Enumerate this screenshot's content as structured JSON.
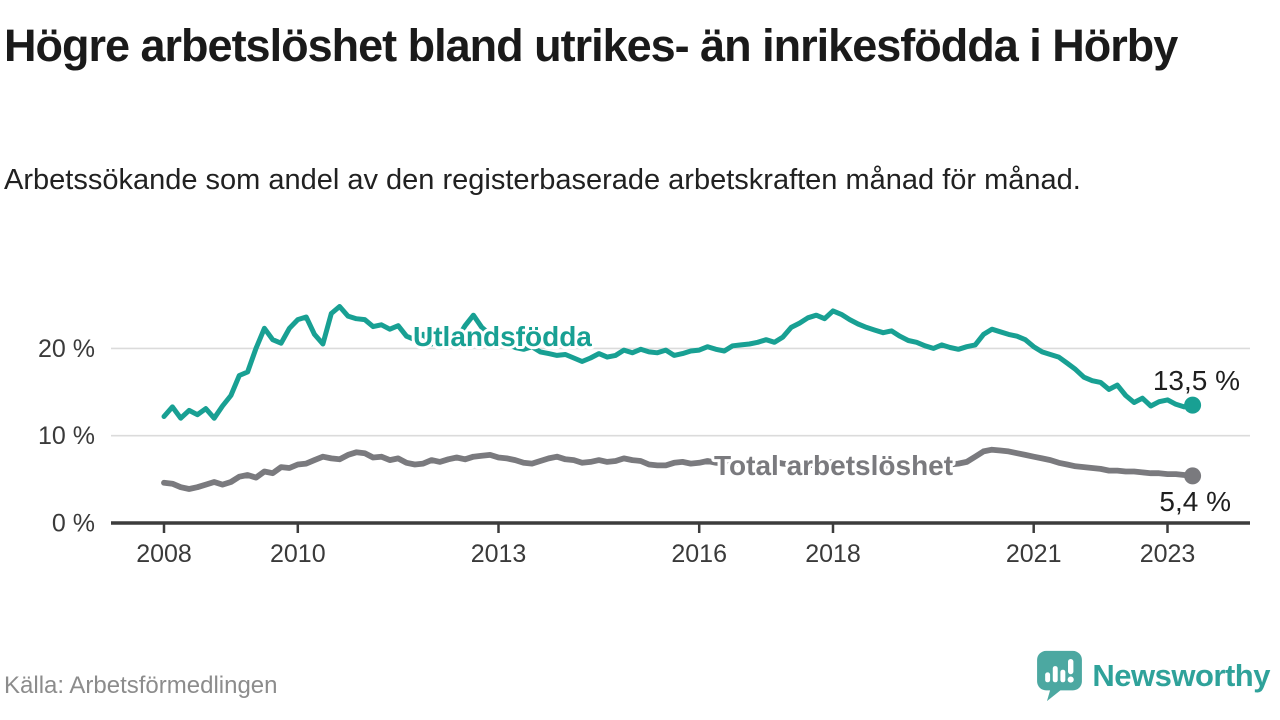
{
  "header": {
    "title": "Högre arbetslöshet bland utrikes- än inrikesfödda i Hörby",
    "subtitle": "Arbetssökande som andel av den registerbaserade arbetskraften månad för månad."
  },
  "footer": {
    "source": "Källa: Arbetsförmedlingen",
    "brand": "Newsworthy"
  },
  "colors": {
    "background": "#ffffff",
    "title_text": "#1a1a1a",
    "axis": "#3c3c3c",
    "grid": "#dbdbdb",
    "tick_text": "#3a3a3a",
    "source_text": "#8c8c8c",
    "brand_teal": "#2fa29a",
    "brand_icon_teal": "#4ca8a1",
    "series_utlandsfodda": "#18a093",
    "series_total": "#7a7a7e"
  },
  "chart_data": {
    "type": "line",
    "title": "Högre arbetslöshet bland utrikes- än inrikesfödda i Hörby",
    "subtitle": "Arbetssökande som andel av den registerbaserade arbetskraften månad för månad.",
    "source": "Källa: Arbetsförmedlingen",
    "unit": "%",
    "grid": "horizontal-only",
    "legend_position": "inline-labels-on-lines",
    "x_start_year": 2008.0,
    "x_step_years": 0.125,
    "xlim": [
      2007.2,
      2024.1
    ],
    "ylim": [
      0,
      28
    ],
    "x_ticks": [
      {
        "value": 2008,
        "label": "2008"
      },
      {
        "value": 2010,
        "label": "2010"
      },
      {
        "value": 2013,
        "label": "2013"
      },
      {
        "value": 2016,
        "label": "2016"
      },
      {
        "value": 2018,
        "label": "2018"
      },
      {
        "value": 2021,
        "label": "2021"
      },
      {
        "value": 2023,
        "label": "2023"
      }
    ],
    "y_ticks": [
      {
        "value": 0,
        "label": "0 %"
      },
      {
        "value": 10,
        "label": "10 %"
      },
      {
        "value": 20,
        "label": "20 %"
      }
    ],
    "series": [
      {
        "name": "Utlandsfödda",
        "color": "#18a093",
        "end_label": "13,5 %",
        "final_value": 13.5,
        "values": [
          12.2,
          13.3,
          12.0,
          12.9,
          12.4,
          13.1,
          12.0,
          13.4,
          14.6,
          16.9,
          17.3,
          20.0,
          22.3,
          21.0,
          20.6,
          22.3,
          23.3,
          23.6,
          21.6,
          20.5,
          24.0,
          24.8,
          23.7,
          23.4,
          23.3,
          22.5,
          22.7,
          22.2,
          22.6,
          21.4,
          21.0,
          21.6,
          20.5,
          21.6,
          21.4,
          21.0,
          22.6,
          23.8,
          22.4,
          21.6,
          21.0,
          20.5,
          20.1,
          19.9,
          20.2,
          19.6,
          19.4,
          19.2,
          19.3,
          18.9,
          18.5,
          18.9,
          19.4,
          19.0,
          19.2,
          19.8,
          19.5,
          19.9,
          19.6,
          19.5,
          19.8,
          19.2,
          19.4,
          19.7,
          19.8,
          20.2,
          19.9,
          19.7,
          20.3,
          20.4,
          20.5,
          20.7,
          21.0,
          20.7,
          21.3,
          22.4,
          22.9,
          23.5,
          23.8,
          23.4,
          24.3,
          23.9,
          23.3,
          22.8,
          22.4,
          22.1,
          21.8,
          22.0,
          21.4,
          20.9,
          20.7,
          20.3,
          20.0,
          20.4,
          20.1,
          19.9,
          20.2,
          20.4,
          21.6,
          22.2,
          21.9,
          21.6,
          21.4,
          21.0,
          20.2,
          19.6,
          19.3,
          19.0,
          18.3,
          17.6,
          16.7,
          16.3,
          16.1,
          15.3,
          15.8,
          14.6,
          13.8,
          14.3,
          13.4,
          13.9,
          14.1,
          13.6,
          13.3,
          13.5
        ]
      },
      {
        "name": "Total arbetslöshet",
        "color": "#7a7a7e",
        "end_label": "5,4 %",
        "final_value": 5.4,
        "values": [
          4.6,
          4.5,
          4.1,
          3.9,
          4.1,
          4.4,
          4.7,
          4.4,
          4.7,
          5.3,
          5.5,
          5.2,
          5.9,
          5.7,
          6.4,
          6.3,
          6.7,
          6.8,
          7.2,
          7.6,
          7.4,
          7.3,
          7.8,
          8.1,
          8.0,
          7.5,
          7.6,
          7.2,
          7.4,
          6.9,
          6.7,
          6.8,
          7.2,
          7.0,
          7.3,
          7.5,
          7.3,
          7.6,
          7.7,
          7.8,
          7.5,
          7.4,
          7.2,
          6.9,
          6.8,
          7.1,
          7.4,
          7.6,
          7.3,
          7.2,
          6.9,
          7.0,
          7.2,
          7.0,
          7.1,
          7.4,
          7.2,
          7.1,
          6.7,
          6.6,
          6.6,
          6.9,
          7.0,
          6.8,
          6.9,
          7.1,
          6.9,
          6.8,
          6.7,
          6.9,
          7.0,
          6.8,
          6.9,
          7.0,
          6.8,
          6.7,
          6.8,
          6.6,
          6.7,
          6.8,
          7.0,
          6.8,
          6.7,
          6.5,
          6.6,
          6.4,
          6.5,
          6.6,
          6.5,
          6.4,
          6.5,
          6.6,
          6.7,
          6.6,
          6.7,
          6.8,
          7.0,
          7.6,
          8.2,
          8.4,
          8.3,
          8.2,
          8.0,
          7.8,
          7.6,
          7.4,
          7.2,
          6.9,
          6.7,
          6.5,
          6.4,
          6.3,
          6.2,
          6.0,
          6.0,
          5.9,
          5.9,
          5.8,
          5.7,
          5.7,
          5.6,
          5.6,
          5.5,
          5.4
        ]
      }
    ]
  }
}
